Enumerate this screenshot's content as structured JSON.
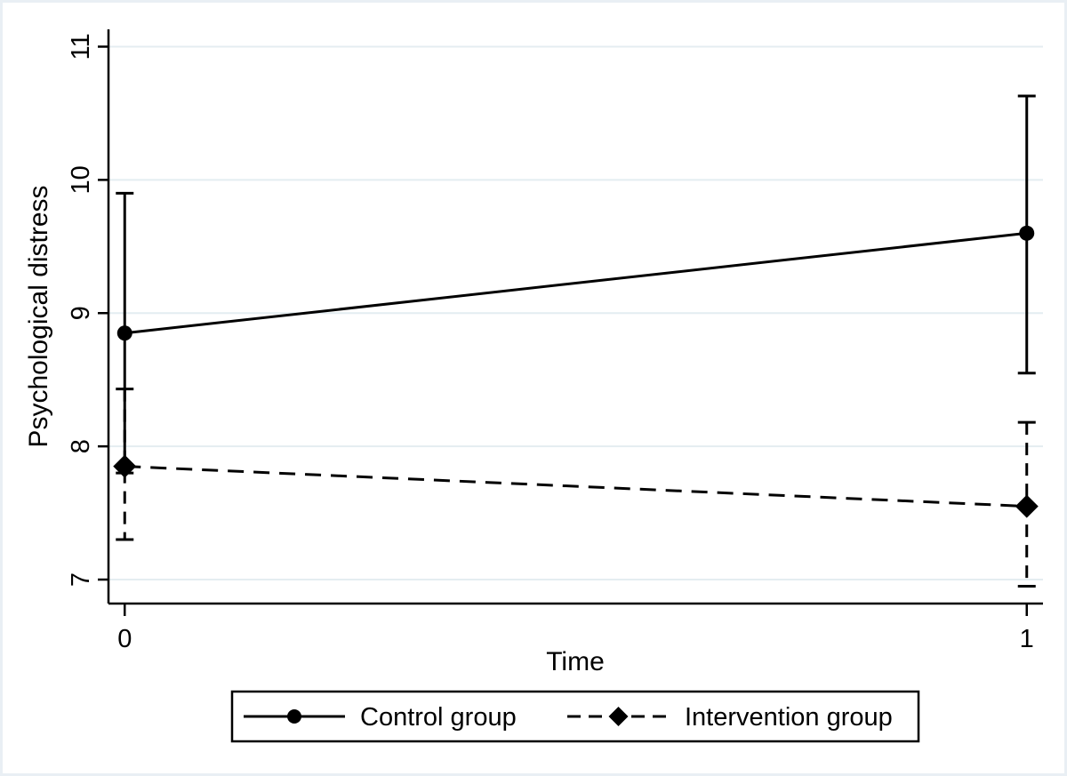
{
  "chart_data": {
    "type": "line",
    "title": "",
    "xlabel": "Time",
    "ylabel": "Psychological distress",
    "x_ticks": [
      {
        "value": 0,
        "label": "0"
      },
      {
        "value": 1,
        "label": "1"
      }
    ],
    "y_ticks": [
      {
        "value": 7,
        "label": "7"
      },
      {
        "value": 8,
        "label": "8"
      },
      {
        "value": 9,
        "label": "9"
      },
      {
        "value": 10,
        "label": "10"
      },
      {
        "value": 11,
        "label": "11"
      }
    ],
    "xlim": [
      -0.018,
      1.018
    ],
    "ylim": [
      6.82,
      11.13
    ],
    "grid": "horizontal-only",
    "y_tick_label_orientation": "vertical",
    "legend_position": "bottom-center",
    "legend_border": true,
    "series": [
      {
        "name": "Control group",
        "marker": "circle",
        "line_style": "solid",
        "points": [
          {
            "x": 0,
            "y": 8.85,
            "ci_low": 7.8,
            "ci_high": 9.9
          },
          {
            "x": 1,
            "y": 9.6,
            "ci_low": 8.55,
            "ci_high": 10.63
          }
        ]
      },
      {
        "name": "Intervention group",
        "marker": "diamond",
        "line_style": "dashed",
        "points": [
          {
            "x": 0,
            "y": 7.85,
            "ci_low": 7.3,
            "ci_high": 8.43
          },
          {
            "x": 1,
            "y": 7.55,
            "ci_low": 6.95,
            "ci_high": 8.18
          }
        ]
      }
    ],
    "colors": {
      "line": "#000000",
      "marker": "#000000",
      "axis": "#000000",
      "grid": "#e4edf1",
      "background": "#ffffff",
      "outer_border": "#e9eff4",
      "legend_border": "#000000"
    }
  }
}
